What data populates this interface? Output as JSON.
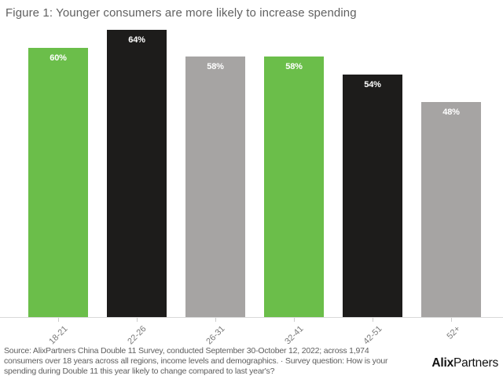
{
  "title": "Figure 1: Younger consumers are more likely to increase spending",
  "chart_data": {
    "type": "bar",
    "title": "Figure 1: Younger consumers are more likely to increase spending",
    "categories": [
      "18-21",
      "22-26",
      "26-31",
      "32-41",
      "42-51",
      "52+"
    ],
    "values": [
      60,
      64,
      58,
      58,
      54,
      48
    ],
    "value_labels": [
      "60%",
      "64%",
      "58%",
      "58%",
      "54%",
      "48%"
    ],
    "bar_colors": [
      "#6bbe4a",
      "#1d1c1b",
      "#a6a4a3",
      "#6bbe4a",
      "#1d1c1b",
      "#a6a4a3"
    ],
    "xlabel": "",
    "ylabel": "",
    "ylim": [
      0,
      65.4
    ],
    "grid": false,
    "legend": false,
    "value_labels_position": "inside-top",
    "x_tick_rotation_deg": 45
  },
  "footer": {
    "lines": [
      "Source: AlixPartners China Double 11 Survey, conducted September 30-October 12, 2022; across 1,974",
      "consumers over 18 years across all regions, income levels and demographics. · Survey question: How is your",
      "spending during Double 11 this year likely to change compared to last year's?"
    ]
  },
  "logo": {
    "bold": "Alix",
    "regular": "Partners"
  },
  "colors": {
    "bar_green": "#6bbe4a",
    "bar_black": "#1d1c1b",
    "bar_gray": "#a6a4a3",
    "axis_line": "#d9d9d9",
    "tick": "#cccccc",
    "title_text": "#616161",
    "axis_label_text": "#7a7a7a",
    "footer_text": "#5e5e5e",
    "value_label_text": "#ffffff",
    "logo_text": "#111111",
    "background": "#ffffff"
  }
}
